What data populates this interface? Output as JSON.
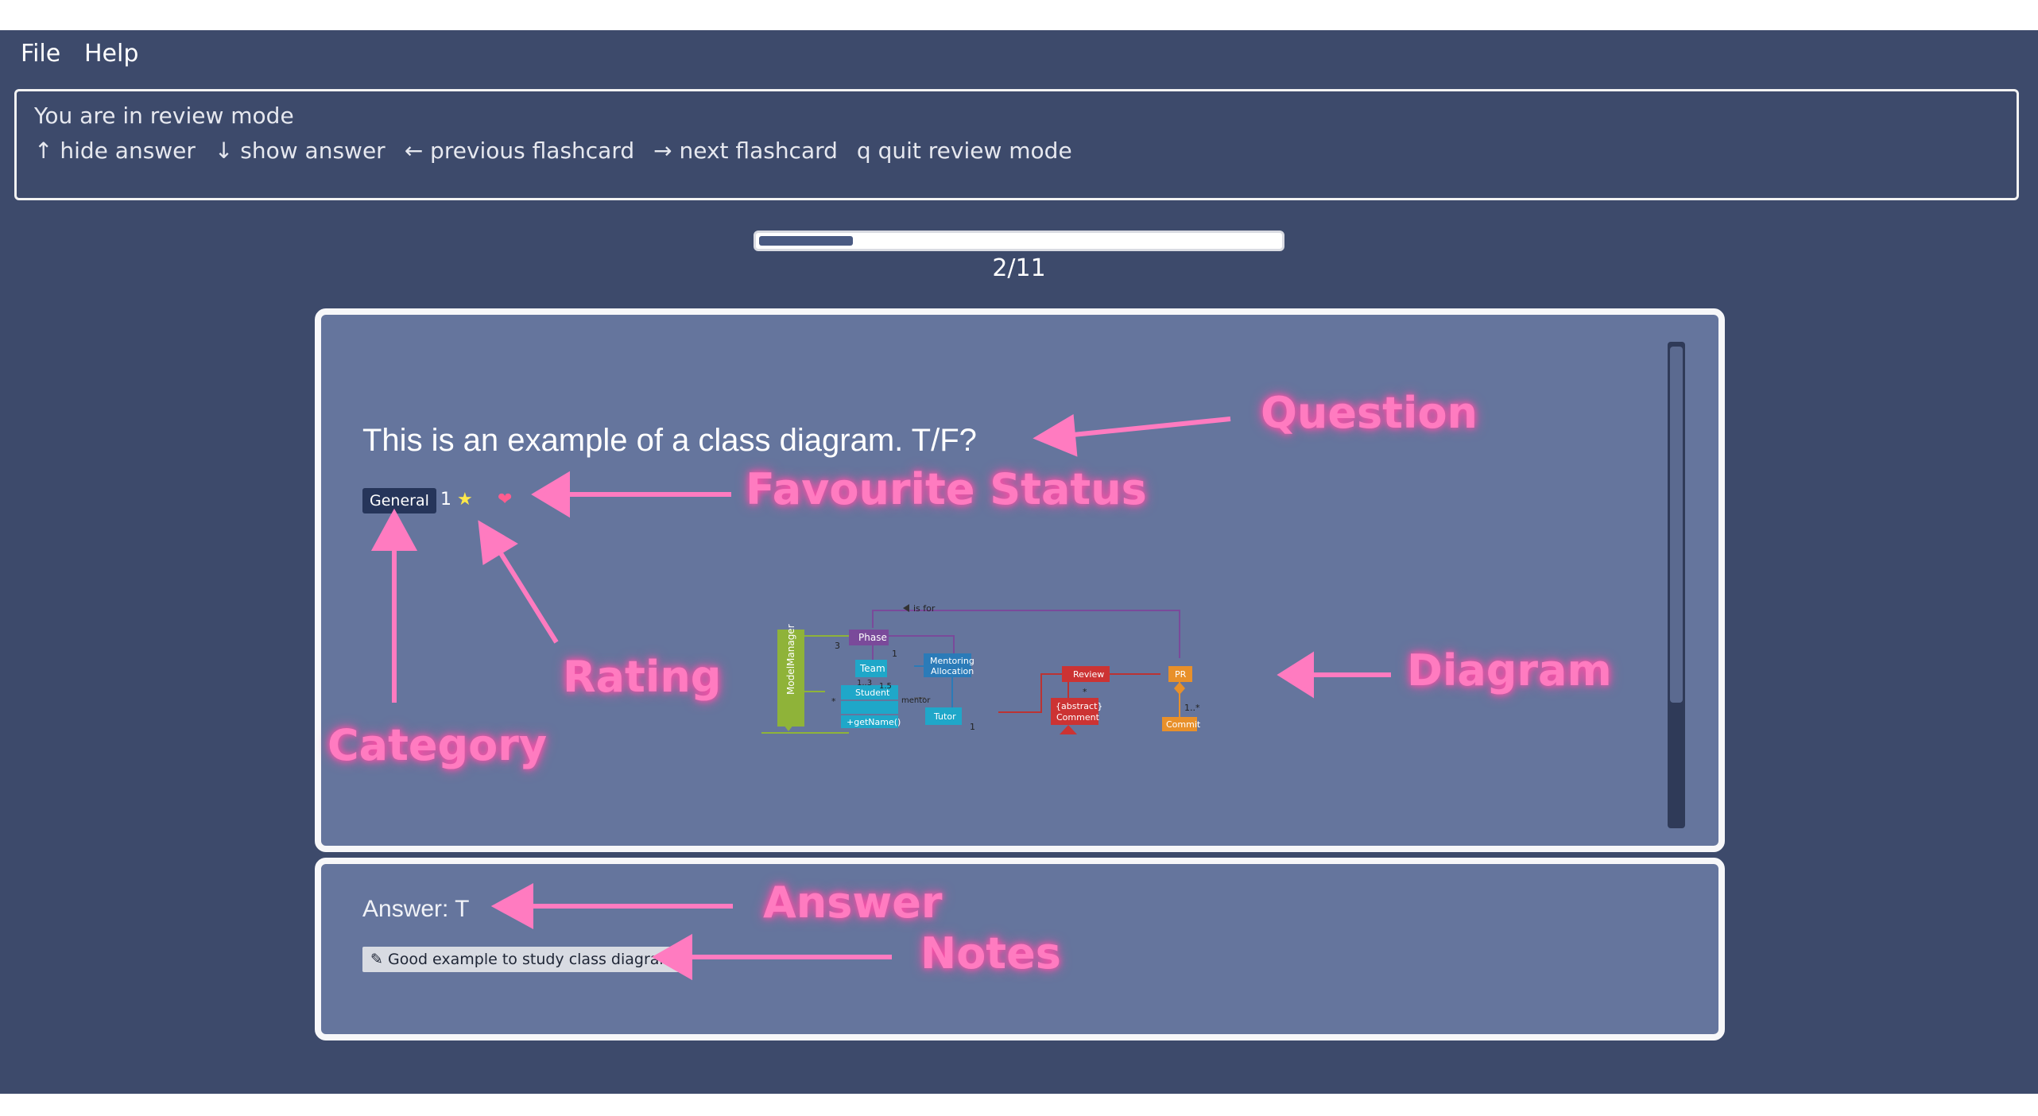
{
  "menu": {
    "file": "File",
    "help": "Help"
  },
  "result": {
    "mode_text": "You are in review mode",
    "keys": [
      "↑ hide answer",
      "↓ show answer",
      "← previous flashcard",
      "→ next flashcard",
      "q quit review mode"
    ]
  },
  "progress": {
    "current": 2,
    "total": 11,
    "fraction": 0.18,
    "label": "2/11"
  },
  "card": {
    "question": "This is an example of a class diagram. T/F?",
    "category": "General",
    "rating": "1",
    "rating_icon": "star-icon",
    "favourite_icon": "heart-icon"
  },
  "diagram": {
    "is_for": "is for",
    "model_manager": "ModelManager",
    "phase": "Phase",
    "team": "Team",
    "mentoring_1": "Mentoring",
    "mentoring_2": "Allocation",
    "student": "Student",
    "get_name": "+getName()",
    "tutor": "Tutor",
    "mentor": "mentor",
    "review": "Review",
    "abstract_1": "{abstract}",
    "abstract_2": "Comment",
    "pr": "PR",
    "commit": "Commit",
    "m3": "3",
    "m1a": "1",
    "m13": "1..3",
    "m15": "1.5",
    "mstar": "*",
    "m1b": "1",
    "mstar2": "*",
    "m1star": "1..*"
  },
  "answer": {
    "text": "Answer: T",
    "note_icon": "pencil-icon",
    "note": "Good example to study class diagram"
  },
  "annotations": {
    "question": "Question",
    "favourite": "Favourite Status",
    "rating": "Rating",
    "category": "Category",
    "diagram": "Diagram",
    "answer": "Answer",
    "notes": "Notes"
  },
  "status": {
    "path": ".\\data\\flashcarddeck.json"
  },
  "colors": {
    "background": "#3d4a6b",
    "card": "#65759d",
    "annotation": "#ff7bc0"
  }
}
